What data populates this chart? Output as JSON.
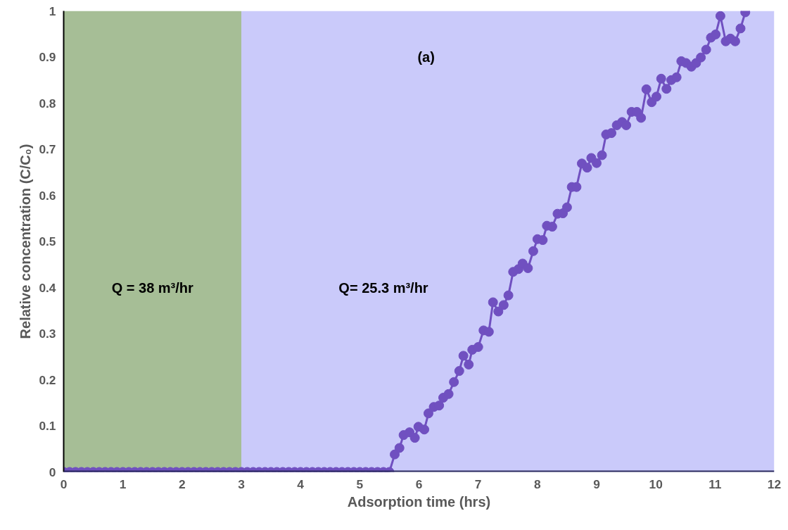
{
  "chart_data": {
    "type": "line",
    "xlabel": "Adsorption time (hrs)",
    "ylabel": "Relative concentration (C/C₀)",
    "annotations": [
      "(a)"
    ],
    "xlim": [
      0,
      12
    ],
    "xticks": [
      0,
      1,
      2,
      3,
      4,
      5,
      6,
      7,
      8,
      9,
      10,
      11,
      12
    ],
    "ylim": [
      0,
      1
    ],
    "yticks": [
      0,
      0.1,
      0.2,
      0.3,
      0.4,
      0.5,
      0.6,
      0.7,
      0.8,
      0.9,
      1
    ],
    "marker": "circle",
    "line_style": "solid",
    "bands": [
      {
        "axis": "x",
        "from": 0,
        "to": 3,
        "label": "Q = 38 m³/hr",
        "color": "#a6be96"
      },
      {
        "axis": "x",
        "from": 3,
        "to": 12,
        "label": "Q= 25.3 m³/hr",
        "color": "#cacafa"
      }
    ],
    "series": [
      {
        "color": "#7050c0",
        "x": [
          0,
          0.1,
          0.2,
          0.3,
          0.4,
          0.5,
          0.6,
          0.7,
          0.8,
          0.9,
          1.0,
          1.1,
          1.2,
          1.3,
          1.4,
          1.5,
          1.6,
          1.7,
          1.8,
          1.9,
          2.0,
          2.1,
          2.2,
          2.3,
          2.4,
          2.5,
          2.6,
          2.7,
          2.8,
          2.9,
          3.0,
          3.1,
          3.2,
          3.3,
          3.4,
          3.5,
          3.6,
          3.7,
          3.8,
          3.9,
          4.0,
          4.1,
          4.2,
          4.3,
          4.4,
          4.5,
          4.6,
          4.7,
          4.8,
          4.9,
          5.0,
          5.1,
          5.2,
          5.3,
          5.4,
          5.5,
          5.59,
          5.67,
          5.74,
          5.84,
          5.93,
          5.99,
          6.09,
          6.16,
          6.25,
          6.34,
          6.41,
          6.5,
          6.59,
          6.68,
          6.75,
          6.84,
          6.9,
          7.0,
          7.09,
          7.18,
          7.25,
          7.34,
          7.43,
          7.51,
          7.59,
          7.68,
          7.75,
          7.84,
          7.93,
          8.0,
          8.09,
          8.16,
          8.25,
          8.34,
          8.43,
          8.5,
          8.58,
          8.66,
          8.75,
          8.84,
          8.91,
          9.0,
          9.09,
          9.16,
          9.25,
          9.34,
          9.43,
          9.5,
          9.59,
          9.68,
          9.75,
          9.84,
          9.93,
          10.01,
          10.09,
          10.18,
          10.26,
          10.35,
          10.43,
          10.51,
          10.6,
          10.68,
          10.76,
          10.85,
          10.93,
          11.01,
          11.09,
          11.18,
          11.26,
          11.34,
          11.43,
          11.51
        ],
        "values": [
          0,
          0,
          0,
          0,
          0,
          0,
          0,
          0,
          0,
          0,
          0,
          0,
          0,
          0,
          0,
          0,
          0,
          0,
          0,
          0,
          0,
          0,
          0,
          0,
          0,
          0,
          0,
          0,
          0,
          0,
          0,
          0,
          0,
          0,
          0,
          0,
          0,
          0,
          0,
          0,
          0,
          0,
          0,
          0,
          0,
          0,
          0,
          0,
          0,
          0,
          0,
          0,
          0,
          0,
          0,
          0,
          0.038,
          0.052,
          0.08,
          0.086,
          0.074,
          0.098,
          0.092,
          0.127,
          0.141,
          0.144,
          0.161,
          0.169,
          0.195,
          0.219,
          0.252,
          0.233,
          0.265,
          0.271,
          0.307,
          0.304,
          0.368,
          0.348,
          0.362,
          0.383,
          0.434,
          0.44,
          0.452,
          0.442,
          0.479,
          0.505,
          0.503,
          0.534,
          0.532,
          0.56,
          0.561,
          0.574,
          0.618,
          0.618,
          0.669,
          0.66,
          0.681,
          0.67,
          0.687,
          0.732,
          0.735,
          0.752,
          0.759,
          0.752,
          0.781,
          0.781,
          0.768,
          0.83,
          0.802,
          0.814,
          0.853,
          0.831,
          0.85,
          0.856,
          0.891,
          0.887,
          0.879,
          0.887,
          0.899,
          0.916,
          0.942,
          0.949,
          0.989,
          0.934,
          0.94,
          0.934,
          0.962,
          0.997
        ]
      }
    ]
  }
}
